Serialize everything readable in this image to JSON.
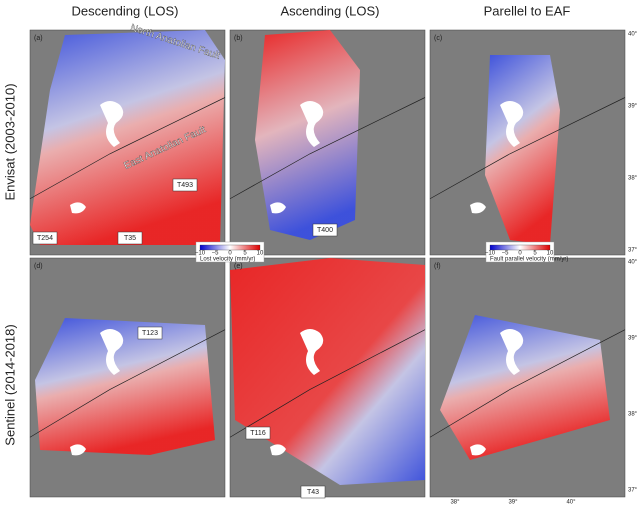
{
  "columns": [
    "Descending (LOS)",
    "Ascending (LOS)",
    "Parellel to EAF"
  ],
  "rows": [
    "Envisat (2003-2010)",
    "Sentinel (2014-2018)"
  ],
  "panels": [
    {
      "label": "(a)",
      "tracks": [
        "T493",
        "T254",
        "T35"
      ],
      "faults": [
        "North Anatolian Fault",
        "East Anatolian Fault"
      ]
    },
    {
      "label": "(b)",
      "tracks": [
        "T400"
      ]
    },
    {
      "label": "(c)",
      "tracks": []
    },
    {
      "label": "(d)",
      "tracks": [
        "T123"
      ]
    },
    {
      "label": "(e)",
      "tracks": [
        "T116",
        "T43"
      ]
    },
    {
      "label": "(f)",
      "tracks": []
    }
  ],
  "colorbars": [
    {
      "label": "Lost velocity (mm/yr)",
      "ticks": [
        "−10",
        "−5",
        "0",
        "5",
        "10"
      ]
    },
    {
      "label": "Fault parallel velocity (mm/yr)",
      "ticks": [
        "−10",
        "−5",
        "0",
        "5",
        "10"
      ]
    }
  ],
  "lat_ticks": [
    "40°",
    "39°",
    "38°",
    "37°"
  ],
  "lat_ticks_lower": [
    "40°",
    "39°",
    "38°",
    "37°"
  ],
  "lon_ticks": [
    "38°",
    "39°",
    "40°"
  ]
}
